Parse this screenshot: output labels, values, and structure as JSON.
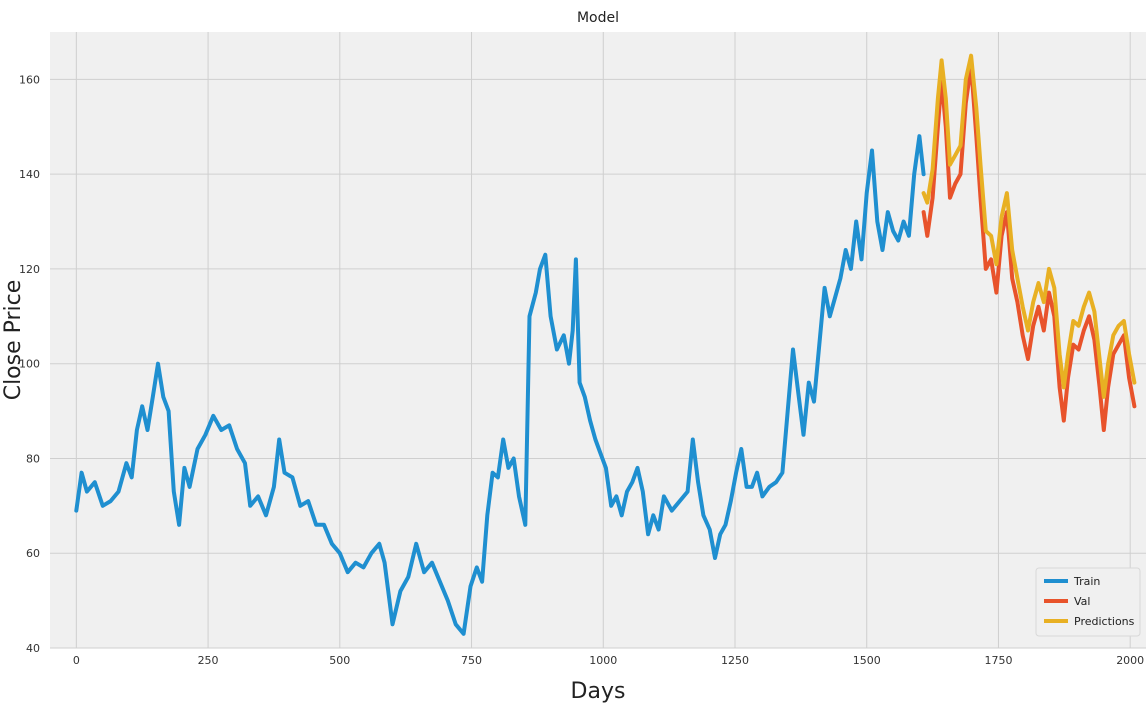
{
  "chart_data": {
    "type": "line",
    "title": "Model",
    "xlabel": "Days",
    "ylabel": "Close Price",
    "xlim": [
      -50,
      2030
    ],
    "ylim": [
      40,
      170
    ],
    "xticks": [
      0,
      250,
      500,
      750,
      1000,
      1250,
      1500,
      1750,
      2000
    ],
    "yticks": [
      40,
      60,
      80,
      100,
      120,
      140,
      160
    ],
    "grid": true,
    "legend_position": "bottom-right",
    "series": [
      {
        "name": "Train",
        "color": "#1f8fd0",
        "points": [
          [
            0,
            69
          ],
          [
            10,
            77
          ],
          [
            20,
            73
          ],
          [
            35,
            75
          ],
          [
            50,
            70
          ],
          [
            65,
            71
          ],
          [
            80,
            73
          ],
          [
            95,
            79
          ],
          [
            105,
            76
          ],
          [
            115,
            86
          ],
          [
            125,
            91
          ],
          [
            135,
            86
          ],
          [
            145,
            93
          ],
          [
            155,
            100
          ],
          [
            165,
            93
          ],
          [
            175,
            90
          ],
          [
            185,
            73
          ],
          [
            195,
            66
          ],
          [
            205,
            78
          ],
          [
            215,
            74
          ],
          [
            230,
            82
          ],
          [
            245,
            85
          ],
          [
            260,
            89
          ],
          [
            275,
            86
          ],
          [
            290,
            87
          ],
          [
            305,
            82
          ],
          [
            320,
            79
          ],
          [
            330,
            70
          ],
          [
            345,
            72
          ],
          [
            360,
            68
          ],
          [
            375,
            74
          ],
          [
            385,
            84
          ],
          [
            395,
            77
          ],
          [
            410,
            76
          ],
          [
            425,
            70
          ],
          [
            440,
            71
          ],
          [
            455,
            66
          ],
          [
            470,
            66
          ],
          [
            485,
            62
          ],
          [
            500,
            60
          ],
          [
            515,
            56
          ],
          [
            530,
            58
          ],
          [
            545,
            57
          ],
          [
            560,
            60
          ],
          [
            575,
            62
          ],
          [
            585,
            58
          ],
          [
            600,
            45
          ],
          [
            615,
            52
          ],
          [
            630,
            55
          ],
          [
            645,
            62
          ],
          [
            660,
            56
          ],
          [
            675,
            58
          ],
          [
            690,
            54
          ],
          [
            705,
            50
          ],
          [
            720,
            45
          ],
          [
            735,
            43
          ],
          [
            748,
            53
          ],
          [
            760,
            57
          ],
          [
            770,
            54
          ],
          [
            780,
            68
          ],
          [
            790,
            77
          ],
          [
            800,
            76
          ],
          [
            810,
            84
          ],
          [
            820,
            78
          ],
          [
            830,
            80
          ],
          [
            840,
            72
          ],
          [
            852,
            66
          ],
          [
            860,
            110
          ],
          [
            872,
            115
          ],
          [
            880,
            120
          ],
          [
            890,
            123
          ],
          [
            900,
            110
          ],
          [
            912,
            103
          ],
          [
            925,
            106
          ],
          [
            935,
            100
          ],
          [
            942,
            107
          ],
          [
            948,
            122
          ],
          [
            955,
            96
          ],
          [
            965,
            93
          ],
          [
            975,
            88
          ],
          [
            985,
            84
          ],
          [
            995,
            81
          ],
          [
            1005,
            78
          ],
          [
            1015,
            70
          ],
          [
            1025,
            72
          ],
          [
            1035,
            68
          ],
          [
            1045,
            73
          ],
          [
            1055,
            75
          ],
          [
            1065,
            78
          ],
          [
            1075,
            73
          ],
          [
            1085,
            64
          ],
          [
            1095,
            68
          ],
          [
            1105,
            65
          ],
          [
            1115,
            72
          ],
          [
            1130,
            69
          ],
          [
            1145,
            71
          ],
          [
            1160,
            73
          ],
          [
            1170,
            84
          ],
          [
            1180,
            75
          ],
          [
            1190,
            68
          ],
          [
            1202,
            65
          ],
          [
            1212,
            59
          ],
          [
            1222,
            64
          ],
          [
            1232,
            66
          ],
          [
            1242,
            71
          ],
          [
            1252,
            77
          ],
          [
            1262,
            82
          ],
          [
            1272,
            74
          ],
          [
            1282,
            74
          ],
          [
            1292,
            77
          ],
          [
            1302,
            72
          ],
          [
            1315,
            74
          ],
          [
            1328,
            75
          ],
          [
            1340,
            77
          ],
          [
            1350,
            90
          ],
          [
            1360,
            103
          ],
          [
            1370,
            94
          ],
          [
            1380,
            85
          ],
          [
            1390,
            96
          ],
          [
            1400,
            92
          ],
          [
            1410,
            104
          ],
          [
            1420,
            116
          ],
          [
            1430,
            110
          ],
          [
            1440,
            114
          ],
          [
            1450,
            118
          ],
          [
            1460,
            124
          ],
          [
            1470,
            120
          ],
          [
            1480,
            130
          ],
          [
            1490,
            122
          ],
          [
            1500,
            136
          ],
          [
            1510,
            145
          ],
          [
            1520,
            130
          ],
          [
            1530,
            124
          ],
          [
            1540,
            132
          ],
          [
            1550,
            128
          ],
          [
            1560,
            126
          ],
          [
            1570,
            130
          ],
          [
            1580,
            127
          ],
          [
            1590,
            140
          ],
          [
            1600,
            148
          ],
          [
            1608,
            140
          ]
        ]
      },
      {
        "name": "Val",
        "color": "#e8532b",
        "points": [
          [
            1608,
            132
          ],
          [
            1615,
            127
          ],
          [
            1625,
            135
          ],
          [
            1635,
            150
          ],
          [
            1642,
            160
          ],
          [
            1650,
            150
          ],
          [
            1658,
            135
          ],
          [
            1668,
            138
          ],
          [
            1678,
            140
          ],
          [
            1688,
            155
          ],
          [
            1698,
            163
          ],
          [
            1708,
            148
          ],
          [
            1716,
            135
          ],
          [
            1726,
            120
          ],
          [
            1736,
            122
          ],
          [
            1746,
            115
          ],
          [
            1756,
            127
          ],
          [
            1766,
            132
          ],
          [
            1776,
            118
          ],
          [
            1786,
            113
          ],
          [
            1796,
            106
          ],
          [
            1806,
            101
          ],
          [
            1816,
            108
          ],
          [
            1826,
            112
          ],
          [
            1836,
            107
          ],
          [
            1846,
            115
          ],
          [
            1856,
            110
          ],
          [
            1866,
            95
          ],
          [
            1874,
            88
          ],
          [
            1882,
            97
          ],
          [
            1892,
            104
          ],
          [
            1902,
            103
          ],
          [
            1912,
            107
          ],
          [
            1922,
            110
          ],
          [
            1932,
            105
          ],
          [
            1942,
            95
          ],
          [
            1950,
            86
          ],
          [
            1958,
            95
          ],
          [
            1968,
            102
          ],
          [
            1978,
            104
          ],
          [
            1988,
            106
          ],
          [
            1998,
            97
          ],
          [
            2008,
            91
          ]
        ]
      },
      {
        "name": "Predictions",
        "color": "#e8b023",
        "points": [
          [
            1608,
            136
          ],
          [
            1615,
            134
          ],
          [
            1625,
            141
          ],
          [
            1635,
            156
          ],
          [
            1642,
            164
          ],
          [
            1650,
            156
          ],
          [
            1658,
            142
          ],
          [
            1668,
            144
          ],
          [
            1678,
            146
          ],
          [
            1688,
            160
          ],
          [
            1698,
            165
          ],
          [
            1708,
            154
          ],
          [
            1716,
            142
          ],
          [
            1726,
            128
          ],
          [
            1736,
            127
          ],
          [
            1746,
            121
          ],
          [
            1756,
            131
          ],
          [
            1766,
            136
          ],
          [
            1776,
            124
          ],
          [
            1786,
            118
          ],
          [
            1796,
            112
          ],
          [
            1806,
            107
          ],
          [
            1816,
            113
          ],
          [
            1826,
            117
          ],
          [
            1836,
            113
          ],
          [
            1846,
            120
          ],
          [
            1856,
            116
          ],
          [
            1866,
            102
          ],
          [
            1874,
            95
          ],
          [
            1882,
            102
          ],
          [
            1892,
            109
          ],
          [
            1902,
            108
          ],
          [
            1912,
            112
          ],
          [
            1922,
            115
          ],
          [
            1932,
            111
          ],
          [
            1942,
            101
          ],
          [
            1950,
            93
          ],
          [
            1958,
            100
          ],
          [
            1968,
            106
          ],
          [
            1978,
            108
          ],
          [
            1988,
            109
          ],
          [
            1998,
            102
          ],
          [
            2008,
            96
          ]
        ]
      }
    ]
  }
}
